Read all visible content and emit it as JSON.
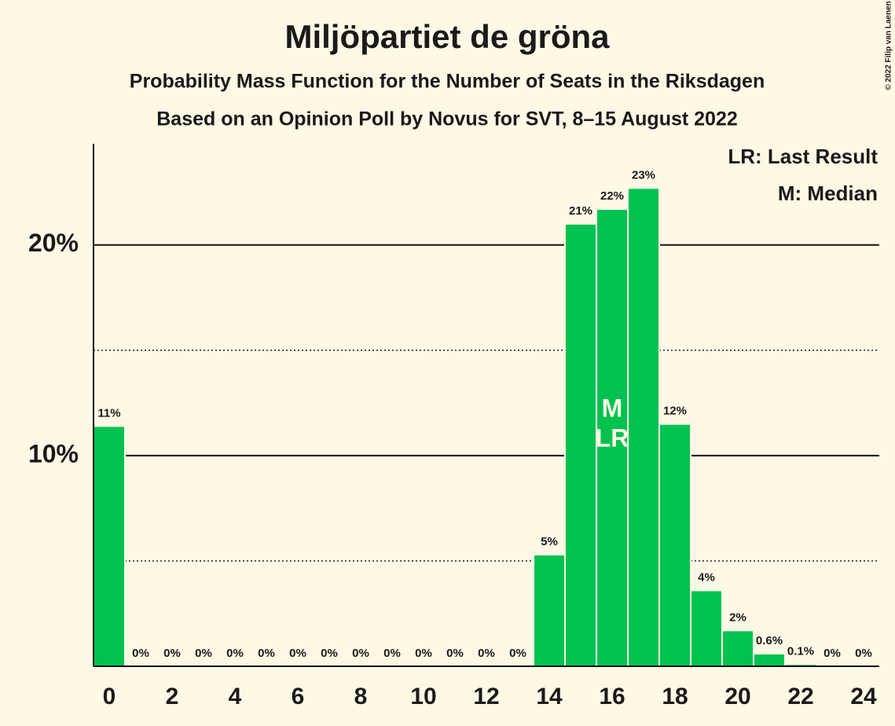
{
  "chart_data": {
    "type": "bar",
    "title": "Miljöpartiet de gröna",
    "subtitle": "Probability Mass Function for the Number of Seats in the Riksdagen",
    "subtitle2": "Based on an Opinion Poll by Novus for SVT, 8–15 August 2022",
    "copyright": "© 2022 Filip van Laenen",
    "legend": [
      "LR: Last Result",
      "M: Median"
    ],
    "categories": [
      0,
      null,
      2,
      null,
      4,
      null,
      6,
      null,
      8,
      null,
      10,
      null,
      12,
      null,
      14,
      null,
      16,
      null,
      18,
      null,
      20,
      null,
      22,
      null,
      24
    ],
    "values": [
      11.4,
      0,
      0,
      0,
      0,
      0,
      0,
      0,
      0,
      0,
      0,
      0,
      0,
      0,
      5.3,
      21.0,
      21.7,
      22.7,
      11.5,
      3.6,
      1.7,
      0.6,
      0.1,
      0,
      0
    ],
    "value_labels": [
      "11%",
      "0%",
      "0%",
      "0%",
      "0%",
      "0%",
      "0%",
      "0%",
      "0%",
      "0%",
      "0%",
      "0%",
      "0%",
      "0%",
      "5%",
      "21%",
      "22%",
      "23%",
      "12%",
      "4%",
      "2%",
      "0.6%",
      "0.1%",
      "0%",
      "0%"
    ],
    "annotations": [
      {
        "index": 16,
        "text": "M"
      },
      {
        "index": 16,
        "text": "LR"
      }
    ],
    "color": "#00c250",
    "ylim": [
      0,
      24.8
    ],
    "yticks": [
      {
        "value": 10,
        "label": "10%"
      },
      {
        "value": 20,
        "label": "20%"
      }
    ],
    "minor_yticks": [
      5,
      15
    ],
    "grid": true
  }
}
